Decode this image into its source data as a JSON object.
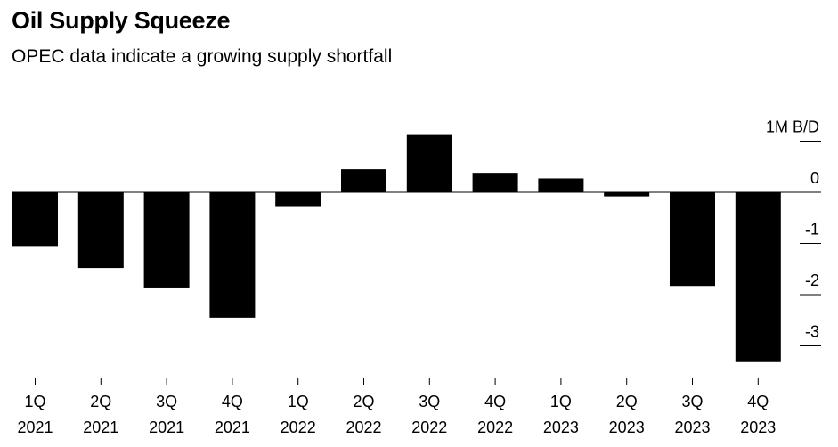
{
  "chart_data": {
    "type": "bar",
    "title": "Oil Supply Squeeze",
    "subtitle": "OPEC data indicate a growing supply shortfall",
    "unit_label": "1M B/D",
    "categories": [
      [
        "1Q",
        "2021"
      ],
      [
        "2Q",
        "2021"
      ],
      [
        "3Q",
        "2021"
      ],
      [
        "4Q",
        "2021"
      ],
      [
        "1Q",
        "2022"
      ],
      [
        "2Q",
        "2022"
      ],
      [
        "3Q",
        "2022"
      ],
      [
        "4Q",
        "2022"
      ],
      [
        "1Q",
        "2023"
      ],
      [
        "2Q",
        "2023"
      ],
      [
        "3Q",
        "2023"
      ],
      [
        "4Q",
        "2023"
      ]
    ],
    "values": [
      -1.05,
      -1.48,
      -1.86,
      -2.45,
      -0.27,
      0.45,
      1.12,
      0.38,
      0.27,
      -0.08,
      -1.83,
      -3.3
    ],
    "ylim": [
      -3.4,
      1.1
    ],
    "yticks": [
      1,
      0,
      -1,
      -2,
      -3
    ],
    "ytick_labels": [
      "1M B/D",
      "0",
      "-1",
      "-2",
      "-3"
    ],
    "bar_color": "#000000",
    "legend": "none",
    "grid": false
  }
}
